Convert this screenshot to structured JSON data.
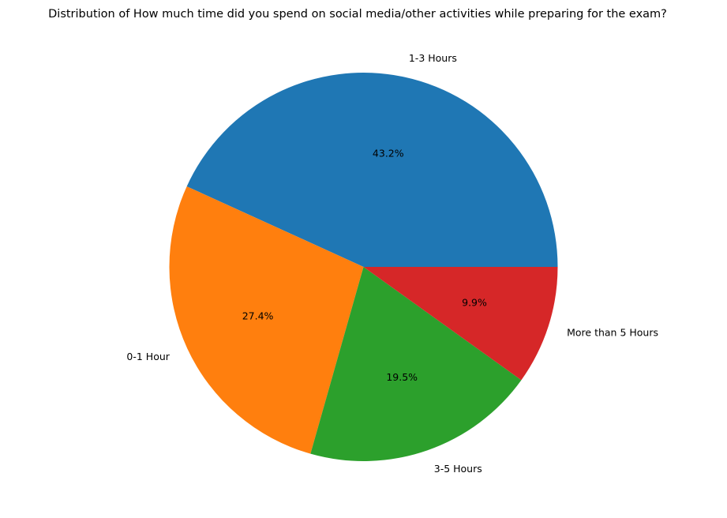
{
  "chart_data": {
    "type": "pie",
    "title": "Distribution of How much time did you spend on social media/other activities while preparing for the exam?",
    "slices": [
      {
        "label": "1-3 Hours",
        "value": 43.2,
        "pct_label": "43.2%",
        "color": "#1f77b4"
      },
      {
        "label": "0-1 Hour",
        "value": 27.4,
        "pct_label": "27.4%",
        "color": "#ff7f0e"
      },
      {
        "label": "3-5 Hours",
        "value": 19.5,
        "pct_label": "19.5%",
        "color": "#2ca02c"
      },
      {
        "label": "More than 5 Hours",
        "value": 9.9,
        "pct_label": "9.9%",
        "color": "#d62728"
      }
    ],
    "start_angle": 0,
    "direction": "counterclockwise"
  }
}
